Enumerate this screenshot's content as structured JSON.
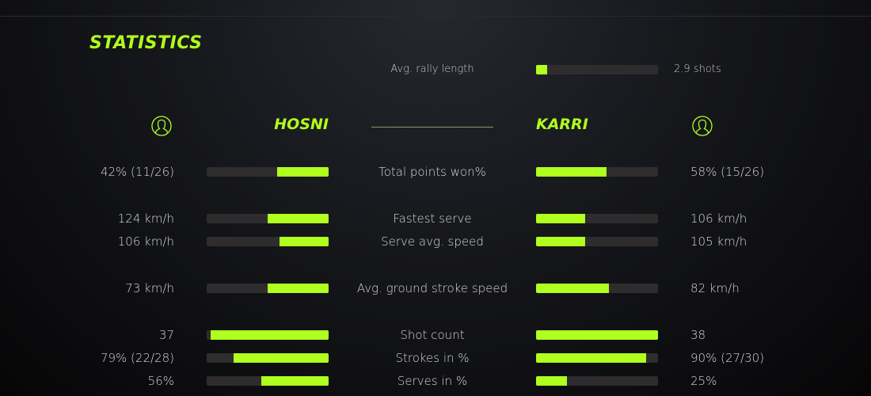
{
  "title": "STATISTICS",
  "colors": {
    "accent": "#b0ff1e",
    "track": "#2e2c2d"
  },
  "rally": {
    "label": "Avg. rally length",
    "value": "2.9 shots",
    "fraction": 0.09
  },
  "players": {
    "left": {
      "name": "HOSNI",
      "icon": "user-icon"
    },
    "right": {
      "name": "KARRI",
      "icon": "user-icon"
    }
  },
  "stats": [
    {
      "label": "Total points won%",
      "left": "42% (11/26)",
      "right": "58% (15/26)",
      "lf": 0.42,
      "rf": 0.58
    },
    {
      "label": "Fastest serve",
      "left": "124 km/h",
      "right": "106 km/h",
      "lf": 0.5,
      "rf": 0.4
    },
    {
      "label": "Serve avg. speed",
      "left": "106 km/h",
      "right": "105 km/h",
      "lf": 0.4,
      "rf": 0.4
    },
    {
      "label": "Avg. ground stroke speed",
      "left": "73 km/h",
      "right": "82 km/h",
      "lf": 0.5,
      "rf": 0.6
    },
    {
      "label": "Shot count",
      "left": "37",
      "right": "38",
      "lf": 0.97,
      "rf": 1.0
    },
    {
      "label": "Strokes in %",
      "left": "79% (22/28)",
      "right": "90% (27/30)",
      "lf": 0.78,
      "rf": 0.9
    },
    {
      "label": "Serves in %",
      "left": "56%",
      "right": "25%",
      "lf": 0.55,
      "rf": 0.25
    }
  ]
}
